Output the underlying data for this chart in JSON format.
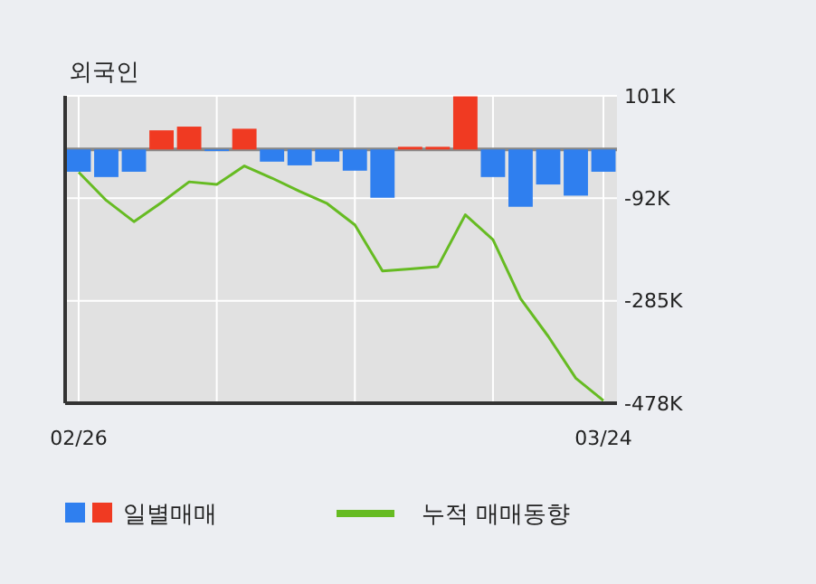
{
  "chart_data": {
    "type": "bar",
    "title": "외국인",
    "categories": [
      "02/26",
      null,
      null,
      null,
      null,
      null,
      null,
      null,
      null,
      null,
      null,
      null,
      null,
      null,
      null,
      null,
      null,
      null,
      null,
      "03/24"
    ],
    "series": [
      {
        "name": "일별매매",
        "colors": [
          "#2f7fef",
          "#2f7fef",
          "#2f7fef",
          "#f03a22",
          "#f03a22",
          "#2f7fef",
          "#f03a22",
          "#2f7fef",
          "#2f7fef",
          "#2f7fef",
          "#2f7fef",
          "#2f7fef",
          "#f03a22",
          "#f03a22",
          "#f03a22",
          "#2f7fef",
          "#2f7fef",
          "#2f7fef",
          "#2f7fef",
          "#2f7fef"
        ],
        "values": [
          -42000,
          -52000,
          -42000,
          36000,
          43000,
          -3000,
          39000,
          -23000,
          -30000,
          -23000,
          -40000,
          -91000,
          5000,
          5000,
          100000,
          -52000,
          -108000,
          -66000,
          -87000,
          -42000
        ]
      },
      {
        "name": "누적 매매동향",
        "type": "line",
        "color": "#66bb22",
        "values": [
          -43000,
          -96000,
          -136000,
          -100000,
          -61000,
          -66000,
          -31000,
          -54000,
          -79000,
          -102000,
          -142000,
          -229000,
          -225000,
          -221000,
          -123000,
          -170000,
          -281000,
          -352000,
          -431000,
          -473000
        ]
      }
    ],
    "ylim": [
      -478000,
      101000
    ],
    "yticks": [
      {
        "value": 101000,
        "label": "101K"
      },
      {
        "value": -92000,
        "label": "-92K"
      },
      {
        "value": -285000,
        "label": "-285K"
      },
      {
        "value": -478000,
        "label": "-478K"
      }
    ],
    "ref_lines": [
      {
        "axis": "y",
        "value": 0,
        "color": "#888888"
      }
    ],
    "grid": true,
    "legend": "bottom"
  }
}
